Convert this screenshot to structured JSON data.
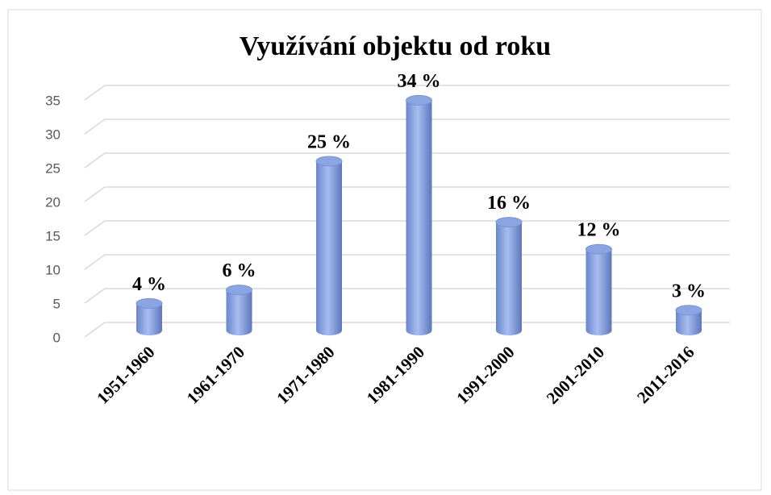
{
  "chart_data": {
    "type": "bar",
    "title": "Využívání objektu od roku",
    "categories": [
      "1951-1960",
      "1961-1970",
      "1971-1980",
      "1981-1990",
      "1991-2000",
      "2001-2010",
      "2011-2016"
    ],
    "values": [
      4,
      6,
      25,
      34,
      16,
      12,
      3
    ],
    "value_labels": [
      "4 %",
      "6 %",
      "25 %",
      "34 %",
      "16 %",
      "12 %",
      "3 %"
    ],
    "color": "#8ba5e3",
    "ylim": [
      0,
      35
    ],
    "yticks": [
      0,
      5,
      10,
      15,
      20,
      25,
      30,
      35
    ],
    "grid": true
  }
}
